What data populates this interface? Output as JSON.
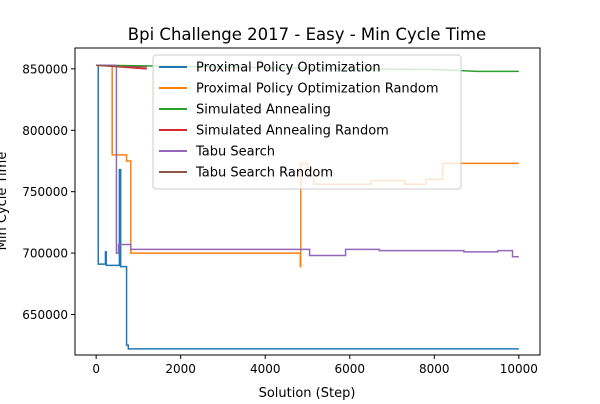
{
  "chart_data": {
    "type": "line",
    "title": "Bpi Challenge 2017 - Easy - Min Cycle Time",
    "xlabel": "Solution (Step)",
    "ylabel": "Min Cycle Time",
    "xlim": [
      -500,
      10500
    ],
    "ylim": [
      617000,
      867000
    ],
    "xticks": [
      0,
      2000,
      4000,
      6000,
      8000,
      10000
    ],
    "yticks": [
      650000,
      700000,
      750000,
      800000,
      850000
    ],
    "grid": false,
    "legend_position": "upper-center",
    "series": [
      {
        "name": "Proximal Policy Optimization",
        "color": "#1f77b4",
        "points": [
          [
            0,
            853000
          ],
          [
            50,
            853000
          ],
          [
            50,
            691000
          ],
          [
            220,
            691000
          ],
          [
            220,
            701000
          ],
          [
            240,
            701000
          ],
          [
            240,
            690000
          ],
          [
            550,
            690000
          ],
          [
            550,
            768000
          ],
          [
            580,
            768000
          ],
          [
            580,
            689000
          ],
          [
            720,
            689000
          ],
          [
            720,
            625000
          ],
          [
            760,
            625000
          ],
          [
            760,
            622000
          ],
          [
            10000,
            622000
          ]
        ]
      },
      {
        "name": "Proximal Policy Optimization Random",
        "color": "#ff7f0e",
        "points": [
          [
            0,
            853000
          ],
          [
            380,
            853000
          ],
          [
            380,
            780000
          ],
          [
            720,
            780000
          ],
          [
            720,
            775000
          ],
          [
            820,
            775000
          ],
          [
            820,
            700000
          ],
          [
            4830,
            700000
          ],
          [
            4830,
            689000
          ],
          [
            4840,
            689000
          ],
          [
            4840,
            773000
          ],
          [
            5000,
            773000
          ],
          [
            5000,
            763000
          ],
          [
            5150,
            763000
          ],
          [
            5150,
            756000
          ],
          [
            6500,
            756000
          ],
          [
            6500,
            759000
          ],
          [
            7300,
            759000
          ],
          [
            7300,
            756000
          ],
          [
            7800,
            756000
          ],
          [
            7800,
            760000
          ],
          [
            8200,
            760000
          ],
          [
            8200,
            773000
          ],
          [
            10000,
            773000
          ]
        ]
      },
      {
        "name": "Simulated Annealing",
        "color": "#2ca02c",
        "points": [
          [
            0,
            853000
          ],
          [
            2000,
            852000
          ],
          [
            4000,
            851000
          ],
          [
            6000,
            850000
          ],
          [
            8000,
            849500
          ],
          [
            8400,
            849000
          ],
          [
            9000,
            848000
          ],
          [
            10000,
            848000
          ]
        ]
      },
      {
        "name": "Simulated Annealing Random",
        "color": "#d62728",
        "points": [
          [
            0,
            853000
          ],
          [
            400,
            852000
          ],
          [
            800,
            851000
          ],
          [
            1200,
            850000
          ]
        ]
      },
      {
        "name": "Tabu Search",
        "color": "#9467bd",
        "points": [
          [
            0,
            853000
          ],
          [
            450,
            853000
          ],
          [
            450,
            852000
          ],
          [
            480,
            852000
          ],
          [
            480,
            700000
          ],
          [
            530,
            700000
          ],
          [
            530,
            707000
          ],
          [
            820,
            707000
          ],
          [
            820,
            703000
          ],
          [
            5050,
            703000
          ],
          [
            5050,
            698000
          ],
          [
            5900,
            698000
          ],
          [
            5900,
            703000
          ],
          [
            6700,
            703000
          ],
          [
            6700,
            702000
          ],
          [
            8700,
            702000
          ],
          [
            8700,
            701000
          ],
          [
            9500,
            701000
          ],
          [
            9500,
            702000
          ],
          [
            9850,
            702000
          ],
          [
            9850,
            697000
          ],
          [
            10000,
            697000
          ]
        ]
      },
      {
        "name": "Tabu Search Random",
        "color": "#8c564b",
        "points": [
          [
            0,
            853000
          ],
          [
            600,
            852000
          ],
          [
            1200,
            851500
          ]
        ]
      }
    ]
  }
}
